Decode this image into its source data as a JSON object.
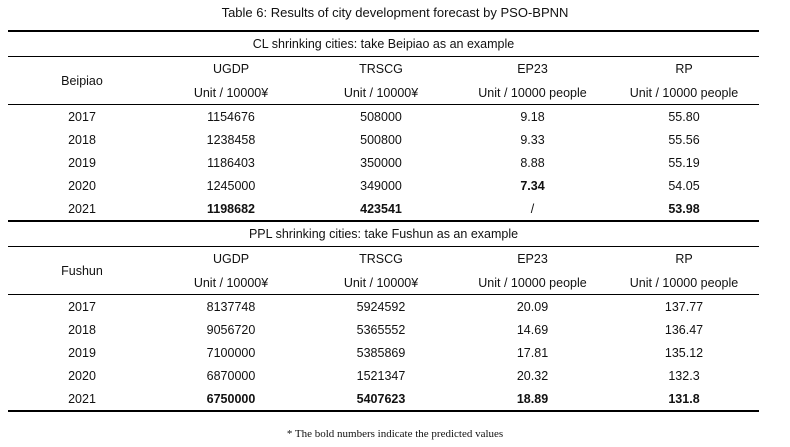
{
  "caption": "Table 6: Results of city development forecast by PSO-BPNN",
  "columns": [
    "UGDP",
    "TRSCG",
    "EP23",
    "RP"
  ],
  "units": [
    "Unit / 10000¥",
    "Unit / 10000¥",
    "Unit / 10000 people",
    "Unit / 10000 people"
  ],
  "sections": [
    {
      "title": "CL shrinking cities: take Beipiao as an example",
      "entity": "Beipiao",
      "rows": [
        {
          "year": "2017",
          "cells": [
            {
              "v": "1154676",
              "bold": false
            },
            {
              "v": "508000",
              "bold": false
            },
            {
              "v": "9.18",
              "bold": false
            },
            {
              "v": "55.80",
              "bold": false
            }
          ]
        },
        {
          "year": "2018",
          "cells": [
            {
              "v": "1238458",
              "bold": false
            },
            {
              "v": "500800",
              "bold": false
            },
            {
              "v": "9.33",
              "bold": false
            },
            {
              "v": "55.56",
              "bold": false
            }
          ]
        },
        {
          "year": "2019",
          "cells": [
            {
              "v": "1186403",
              "bold": false
            },
            {
              "v": "350000",
              "bold": false
            },
            {
              "v": "8.88",
              "bold": false
            },
            {
              "v": "55.19",
              "bold": false
            }
          ]
        },
        {
          "year": "2020",
          "cells": [
            {
              "v": "1245000",
              "bold": false
            },
            {
              "v": "349000",
              "bold": false
            },
            {
              "v": "7.34",
              "bold": true
            },
            {
              "v": "54.05",
              "bold": false
            }
          ]
        },
        {
          "year": "2021",
          "cells": [
            {
              "v": "1198682",
              "bold": true
            },
            {
              "v": "423541",
              "bold": true
            },
            {
              "v": "/",
              "bold": false
            },
            {
              "v": "53.98",
              "bold": true
            }
          ]
        }
      ]
    },
    {
      "title": "PPL shrinking cities: take Fushun as an example",
      "entity": "Fushun",
      "rows": [
        {
          "year": "2017",
          "cells": [
            {
              "v": "8137748",
              "bold": false
            },
            {
              "v": "5924592",
              "bold": false
            },
            {
              "v": "20.09",
              "bold": false
            },
            {
              "v": "137.77",
              "bold": false
            }
          ]
        },
        {
          "year": "2018",
          "cells": [
            {
              "v": "9056720",
              "bold": false
            },
            {
              "v": "5365552",
              "bold": false
            },
            {
              "v": "14.69",
              "bold": false
            },
            {
              "v": "136.47",
              "bold": false
            }
          ]
        },
        {
          "year": "2019",
          "cells": [
            {
              "v": "7100000",
              "bold": false
            },
            {
              "v": "5385869",
              "bold": false
            },
            {
              "v": "17.81",
              "bold": false
            },
            {
              "v": "135.12",
              "bold": false
            }
          ]
        },
        {
          "year": "2020",
          "cells": [
            {
              "v": "6870000",
              "bold": false
            },
            {
              "v": "1521347",
              "bold": false
            },
            {
              "v": "20.32",
              "bold": false
            },
            {
              "v": "132.3",
              "bold": false
            }
          ]
        },
        {
          "year": "2021",
          "cells": [
            {
              "v": "6750000",
              "bold": true
            },
            {
              "v": "5407623",
              "bold": true
            },
            {
              "v": "18.89",
              "bold": true
            },
            {
              "v": "131.8",
              "bold": true
            }
          ]
        }
      ]
    }
  ],
  "footnote": "* The bold numbers indicate the predicted values"
}
